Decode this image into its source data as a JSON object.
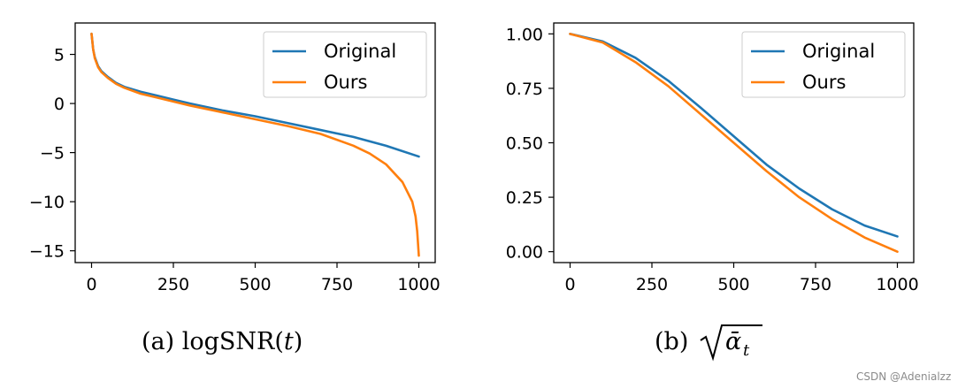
{
  "captions": {
    "a_prefix": "(a) logSNR(",
    "a_var": "t",
    "a_suffix": ")",
    "b_prefix": "(b) ",
    "b_symbol": "ᾱ",
    "b_subscript": "t"
  },
  "watermark": "CSDN @Adenialzz",
  "colors": {
    "original": "#1f77b4",
    "ours": "#ff7f0e"
  },
  "chart_data": [
    {
      "type": "line",
      "title": "",
      "xlabel": "",
      "ylabel": "",
      "xlim": [
        -50,
        1050
      ],
      "ylim": [
        -16.2,
        8.2
      ],
      "xticks": [
        0,
        250,
        500,
        750,
        1000
      ],
      "xtick_labels": [
        "0",
        "250",
        "500",
        "750",
        "1000"
      ],
      "yticks": [
        5,
        0,
        -5,
        -10,
        -15
      ],
      "ytick_labels": [
        "5",
        "0",
        "−5",
        "−10",
        "−15"
      ],
      "legend_position": "top-right",
      "grid": false,
      "series": [
        {
          "name": "Original",
          "color": "#1f77b4",
          "x": [
            0,
            5,
            10,
            20,
            30,
            50,
            75,
            100,
            150,
            200,
            250,
            300,
            400,
            500,
            600,
            700,
            800,
            900,
            1000
          ],
          "y": [
            7.1,
            5.5,
            4.7,
            3.8,
            3.3,
            2.7,
            2.1,
            1.7,
            1.2,
            0.8,
            0.4,
            0.0,
            -0.7,
            -1.3,
            -2.0,
            -2.7,
            -3.4,
            -4.3,
            -5.4
          ]
        },
        {
          "name": "Ours",
          "color": "#ff7f0e",
          "x": [
            0,
            5,
            10,
            20,
            30,
            50,
            75,
            100,
            150,
            200,
            250,
            300,
            400,
            500,
            600,
            700,
            800,
            850,
            900,
            950,
            980,
            990,
            995,
            1000
          ],
          "y": [
            7.1,
            5.5,
            4.6,
            3.7,
            3.2,
            2.6,
            2.0,
            1.6,
            1.0,
            0.6,
            0.2,
            -0.2,
            -0.9,
            -1.6,
            -2.3,
            -3.1,
            -4.3,
            -5.1,
            -6.2,
            -8.0,
            -10.0,
            -11.5,
            -13.0,
            -15.5
          ]
        }
      ]
    },
    {
      "type": "line",
      "title": "",
      "xlabel": "",
      "ylabel": "",
      "xlim": [
        -50,
        1050
      ],
      "ylim": [
        -0.05,
        1.05
      ],
      "xticks": [
        0,
        250,
        500,
        750,
        1000
      ],
      "xtick_labels": [
        "0",
        "250",
        "500",
        "750",
        "1000"
      ],
      "yticks": [
        1.0,
        0.75,
        0.5,
        0.25,
        0.0
      ],
      "ytick_labels": [
        "1.00",
        "0.75",
        "0.50",
        "0.25",
        "0.00"
      ],
      "legend_position": "top-right",
      "grid": false,
      "series": [
        {
          "name": "Original",
          "color": "#1f77b4",
          "x": [
            0,
            100,
            200,
            300,
            400,
            500,
            600,
            700,
            800,
            900,
            1000
          ],
          "y": [
            1.0,
            0.965,
            0.89,
            0.785,
            0.66,
            0.53,
            0.4,
            0.29,
            0.195,
            0.12,
            0.07
          ]
        },
        {
          "name": "Ours",
          "color": "#ff7f0e",
          "x": [
            0,
            100,
            200,
            300,
            400,
            500,
            600,
            700,
            800,
            900,
            1000
          ],
          "y": [
            1.0,
            0.96,
            0.87,
            0.76,
            0.63,
            0.5,
            0.37,
            0.25,
            0.15,
            0.065,
            0.0
          ]
        }
      ]
    }
  ]
}
